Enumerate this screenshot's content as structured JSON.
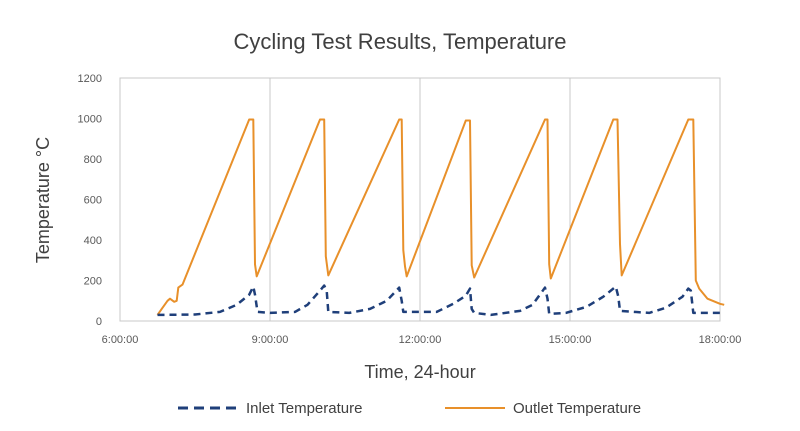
{
  "chart_data": {
    "type": "line",
    "title": "Cycling Test Results, Temperature",
    "xlabel": "Time, 24-hour",
    "ylabel": "Temperature °C",
    "xlim": [
      "6:00:00",
      "18:00:00"
    ],
    "ylim": [
      0,
      1200
    ],
    "x_ticks": [
      "6:00:00",
      "9:00:00",
      "12:00:00",
      "15:00:00",
      "18:00:00"
    ],
    "y_ticks": [
      "0",
      "200",
      "400",
      "600",
      "800",
      "1000",
      "1200"
    ],
    "grid": "vertical",
    "legend_position": "bottom",
    "series": [
      {
        "name": "Inlet Temperature",
        "style": "dashed",
        "color": "#1f3f7a",
        "points": [
          [
            "6:45:00",
            30
          ],
          [
            "7:30:00",
            32
          ],
          [
            "8:00:00",
            45
          ],
          [
            "8:20:00",
            80
          ],
          [
            "8:35:00",
            130
          ],
          [
            "8:40:00",
            170
          ],
          [
            "8:42:00",
            130
          ],
          [
            "8:45:00",
            45
          ],
          [
            "9:00:00",
            40
          ],
          [
            "9:30:00",
            45
          ],
          [
            "9:45:00",
            80
          ],
          [
            "10:00:00",
            150
          ],
          [
            "10:05:00",
            175
          ],
          [
            "10:08:00",
            150
          ],
          [
            "10:10:00",
            45
          ],
          [
            "10:35:00",
            40
          ],
          [
            "11:00:00",
            60
          ],
          [
            "11:20:00",
            100
          ],
          [
            "11:35:00",
            165
          ],
          [
            "11:38:00",
            100
          ],
          [
            "11:40:00",
            45
          ],
          [
            "12:20:00",
            45
          ],
          [
            "12:40:00",
            85
          ],
          [
            "12:55:00",
            125
          ],
          [
            "13:00:00",
            160
          ],
          [
            "13:02:00",
            60
          ],
          [
            "13:05:00",
            40
          ],
          [
            "13:25:00",
            30
          ],
          [
            "14:00:00",
            50
          ],
          [
            "14:15:00",
            80
          ],
          [
            "14:30:00",
            165
          ],
          [
            "14:33:00",
            110
          ],
          [
            "14:35:00",
            35
          ],
          [
            "14:55:00",
            40
          ],
          [
            "15:20:00",
            70
          ],
          [
            "15:40:00",
            120
          ],
          [
            "15:55:00",
            170
          ],
          [
            "15:58:00",
            120
          ],
          [
            "16:00:00",
            50
          ],
          [
            "16:35:00",
            40
          ],
          [
            "16:55:00",
            65
          ],
          [
            "17:15:00",
            120
          ],
          [
            "17:22:00",
            160
          ],
          [
            "17:25:00",
            150
          ],
          [
            "17:28:00",
            40
          ],
          [
            "18:00:00",
            40
          ]
        ]
      },
      {
        "name": "Outlet Temperature",
        "style": "solid",
        "color": "#e8902a",
        "points": [
          [
            "6:45:00",
            30
          ],
          [
            "6:50:00",
            60
          ],
          [
            "6:57:00",
            100
          ],
          [
            "7:00:00",
            110
          ],
          [
            "7:05:00",
            95
          ],
          [
            "7:08:00",
            100
          ],
          [
            "7:10:00",
            165
          ],
          [
            "7:15:00",
            180
          ],
          [
            "8:35:00",
            995
          ],
          [
            "8:40:00",
            995
          ],
          [
            "8:42:00",
            280
          ],
          [
            "8:44:00",
            220
          ],
          [
            "10:00:00",
            995
          ],
          [
            "10:05:00",
            995
          ],
          [
            "10:07:00",
            320
          ],
          [
            "10:10:00",
            225
          ],
          [
            "11:35:00",
            995
          ],
          [
            "11:38:00",
            995
          ],
          [
            "11:40:00",
            350
          ],
          [
            "11:42:00",
            270
          ],
          [
            "11:44:00",
            220
          ],
          [
            "12:55:00",
            990
          ],
          [
            "13:00:00",
            990
          ],
          [
            "13:02:00",
            275
          ],
          [
            "13:05:00",
            215
          ],
          [
            "14:30:00",
            995
          ],
          [
            "14:33:00",
            995
          ],
          [
            "14:35:00",
            280
          ],
          [
            "14:37:00",
            210
          ],
          [
            "15:52:00",
            995
          ],
          [
            "15:57:00",
            995
          ],
          [
            "16:00:00",
            380
          ],
          [
            "16:02:00",
            225
          ],
          [
            "17:22:00",
            995
          ],
          [
            "17:28:00",
            995
          ],
          [
            "17:31:00",
            200
          ],
          [
            "17:35:00",
            160
          ],
          [
            "17:45:00",
            110
          ],
          [
            "18:00:00",
            85
          ],
          [
            "18:05:00",
            80
          ]
        ]
      }
    ]
  }
}
